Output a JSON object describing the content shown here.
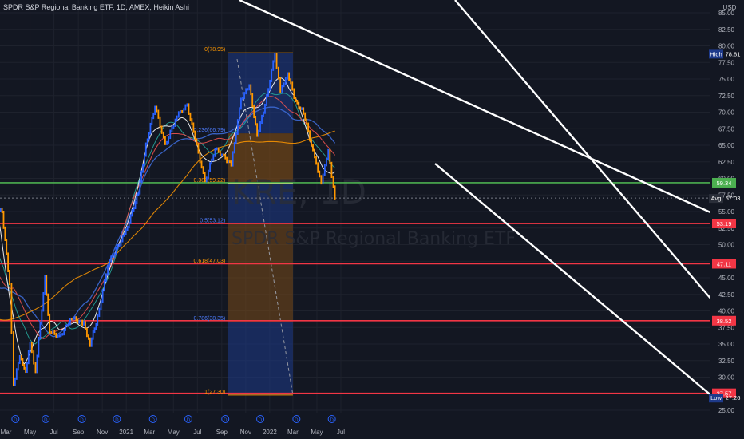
{
  "header": {
    "title": "SPDR S&P Regional Banking ETF, 1D, AMEX, Heikin Ashi"
  },
  "watermark": {
    "line1": "KRE, 1D",
    "line2": "SPDR S&P Regional Banking ETF"
  },
  "colors": {
    "background": "#131722",
    "candle_up": "#2962ff",
    "candle_down": "#ff9800",
    "support_red": "#f23645",
    "support_green": "#4caf50",
    "trend_white": "#ffffff",
    "fib_blue_zone": "#1e3a8a",
    "fib_orange_zone": "#7a4a17"
  },
  "chart_data": {
    "type": "line",
    "title": "SPDR S&P Regional Banking ETF, 1D, AMEX, Heikin Ashi",
    "ylim": [
      25,
      85
    ],
    "y_ticks": [
      "85.00",
      "82.50",
      "80.00",
      "77.50",
      "75.00",
      "72.50",
      "70.00",
      "67.50",
      "65.00",
      "62.50",
      "60.00",
      "57.50",
      "55.00",
      "52.50",
      "50.00",
      "47.50",
      "45.00",
      "42.50",
      "40.00",
      "37.50",
      "35.00",
      "32.50",
      "30.00",
      "27.50",
      "25.00"
    ],
    "x_ticks": [
      "Mar",
      "May",
      "Jul",
      "Sep",
      "Nov",
      "2021",
      "Mar",
      "May",
      "Jul",
      "Sep",
      "Nov",
      "2022",
      "Mar",
      "May",
      "Jul"
    ],
    "series": [
      {
        "values": [
          {
            "x": "2020-01-01",
            "y": 57.5
          },
          {
            "x": "2020-02-01",
            "y": 56.0
          },
          {
            "x": "2020-02-20",
            "y": 55.0
          },
          {
            "x": "2020-03-10",
            "y": 44.0
          },
          {
            "x": "2020-03-20",
            "y": 29.0
          },
          {
            "x": "2020-04-05",
            "y": 33.0
          },
          {
            "x": "2020-04-20",
            "y": 31.0
          },
          {
            "x": "2020-05-01",
            "y": 35.0
          },
          {
            "x": "2020-05-15",
            "y": 31.0
          },
          {
            "x": "2020-06-08",
            "y": 45.0
          },
          {
            "x": "2020-06-20",
            "y": 37.0
          },
          {
            "x": "2020-07-15",
            "y": 36.0
          },
          {
            "x": "2020-08-15",
            "y": 39.0
          },
          {
            "x": "2020-09-15",
            "y": 38.0
          },
          {
            "x": "2020-10-01",
            "y": 35.0
          },
          {
            "x": "2020-10-20",
            "y": 39.0
          },
          {
            "x": "2020-11-15",
            "y": 47.0
          },
          {
            "x": "2020-12-31",
            "y": 52.0
          },
          {
            "x": "2021-02-01",
            "y": 58.0
          },
          {
            "x": "2021-02-20",
            "y": 65.0
          },
          {
            "x": "2021-03-15",
            "y": 71.0
          },
          {
            "x": "2021-04-10",
            "y": 65.0
          },
          {
            "x": "2021-05-10",
            "y": 69.5
          },
          {
            "x": "2021-06-05",
            "y": 71.0
          },
          {
            "x": "2021-06-25",
            "y": 66.0
          },
          {
            "x": "2021-07-20",
            "y": 59.5
          },
          {
            "x": "2021-08-15",
            "y": 64.5
          },
          {
            "x": "2021-09-10",
            "y": 63.0
          },
          {
            "x": "2021-09-25",
            "y": 62.0
          },
          {
            "x": "2021-10-20",
            "y": 72.0
          },
          {
            "x": "2021-11-10",
            "y": 74.0
          },
          {
            "x": "2021-11-30",
            "y": 66.5
          },
          {
            "x": "2021-12-20",
            "y": 71.0
          },
          {
            "x": "2022-01-14",
            "y": 78.81
          },
          {
            "x": "2022-01-28",
            "y": 73.0
          },
          {
            "x": "2022-02-15",
            "y": 76.0
          },
          {
            "x": "2022-03-08",
            "y": 71.5
          },
          {
            "x": "2022-03-28",
            "y": 70.0
          },
          {
            "x": "2022-04-25",
            "y": 63.0
          },
          {
            "x": "2022-05-12",
            "y": 59.5
          },
          {
            "x": "2022-05-30",
            "y": 64.0
          },
          {
            "x": "2022-06-16",
            "y": 57.0
          }
        ]
      }
    ],
    "horizontal_levels": [
      {
        "label": "59.34",
        "value": 59.34,
        "color": "#4caf50"
      },
      {
        "label": "53.19",
        "value": 53.19,
        "color": "#f23645"
      },
      {
        "label": "47.11",
        "value": 47.11,
        "color": "#f23645"
      },
      {
        "label": "38.52",
        "value": 38.52,
        "color": "#f23645"
      },
      {
        "label": "27.57",
        "value": 27.57,
        "color": "#f23645"
      }
    ],
    "fib_levels": [
      {
        "label": "0(78.95)",
        "value": 78.95
      },
      {
        "label": "0.236(66.79)",
        "value": 66.79
      },
      {
        "label": "0.382(59.22)",
        "value": 59.22
      },
      {
        "label": "0.5(53.12)",
        "value": 53.12
      },
      {
        "label": "0.618(47.03)",
        "value": 47.03
      },
      {
        "label": "0.786(38.35)",
        "value": 38.35
      },
      {
        "label": "1(27.30)",
        "value": 27.3
      }
    ],
    "markers": {
      "high": {
        "label": "High",
        "value": "78.81"
      },
      "avg": {
        "label": "Avg",
        "value": "57.03"
      },
      "low": {
        "label": "Low",
        "value": "27.26"
      }
    },
    "event_marker_glyph": "D"
  }
}
